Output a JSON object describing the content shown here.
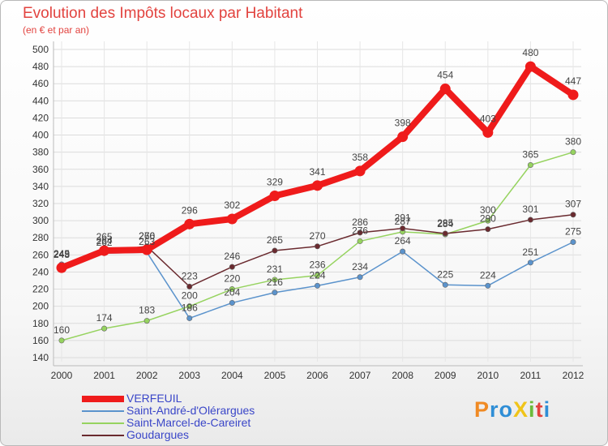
{
  "title": "Evolution des Impôts locaux par Habitant",
  "subtitle": "(en € et par an)",
  "logo": {
    "text": "ProXiti",
    "letters": [
      "P",
      "r",
      "o",
      "X",
      "i",
      "t",
      "i"
    ],
    "colors": [
      "#f08a24",
      "#2f8ed6",
      "#2f8ed6",
      "#f0c419",
      "#6cbb3c",
      "#e2433f",
      "#2f8ed6"
    ]
  },
  "chart_data": {
    "type": "line",
    "title": "Evolution des Impôts locaux par Habitant",
    "subtitle": "(en € et par an)",
    "xlabel": "",
    "ylabel": "",
    "x": [
      "2000",
      "2001",
      "2002",
      "2003",
      "2004",
      "2005",
      "2006",
      "2007",
      "2008",
      "2009",
      "2010",
      "2011",
      "2012"
    ],
    "ylim": [
      140,
      500
    ],
    "yticks": [
      140,
      160,
      180,
      200,
      220,
      240,
      260,
      280,
      300,
      320,
      340,
      360,
      380,
      400,
      420,
      440,
      460,
      480,
      500
    ],
    "grid": true,
    "legend_position": "bottom-left",
    "series": [
      {
        "name": "Saint-André-d'Olérargues",
        "color": "#5b93cc",
        "values": [
          249,
          262,
          263,
          186,
          204,
          216,
          224,
          234,
          264,
          225,
          224,
          251,
          275
        ]
      },
      {
        "name": "Saint-Marcel-de-Careiret",
        "color": "#96d35f",
        "values": [
          160,
          174,
          183,
          200,
          220,
          231,
          236,
          276,
          287,
          284,
          300,
          365,
          380
        ]
      },
      {
        "name": "Goudargues",
        "color": "#6a2a2f",
        "values": [
          248,
          264,
          270,
          223,
          246,
          265,
          270,
          286,
          291,
          285,
          290,
          301,
          307
        ]
      },
      {
        "name": "VERFEUIL",
        "color": "#ef1b1b",
        "values": [
          245,
          265,
          266,
          296,
          302,
          329,
          341,
          358,
          398,
          454,
          403,
          480,
          447
        ]
      }
    ],
    "legend_order": [
      "VERFEUIL",
      "Saint-André-d'Olérargues",
      "Saint-Marcel-de-Careiret",
      "Goudargues"
    ]
  }
}
